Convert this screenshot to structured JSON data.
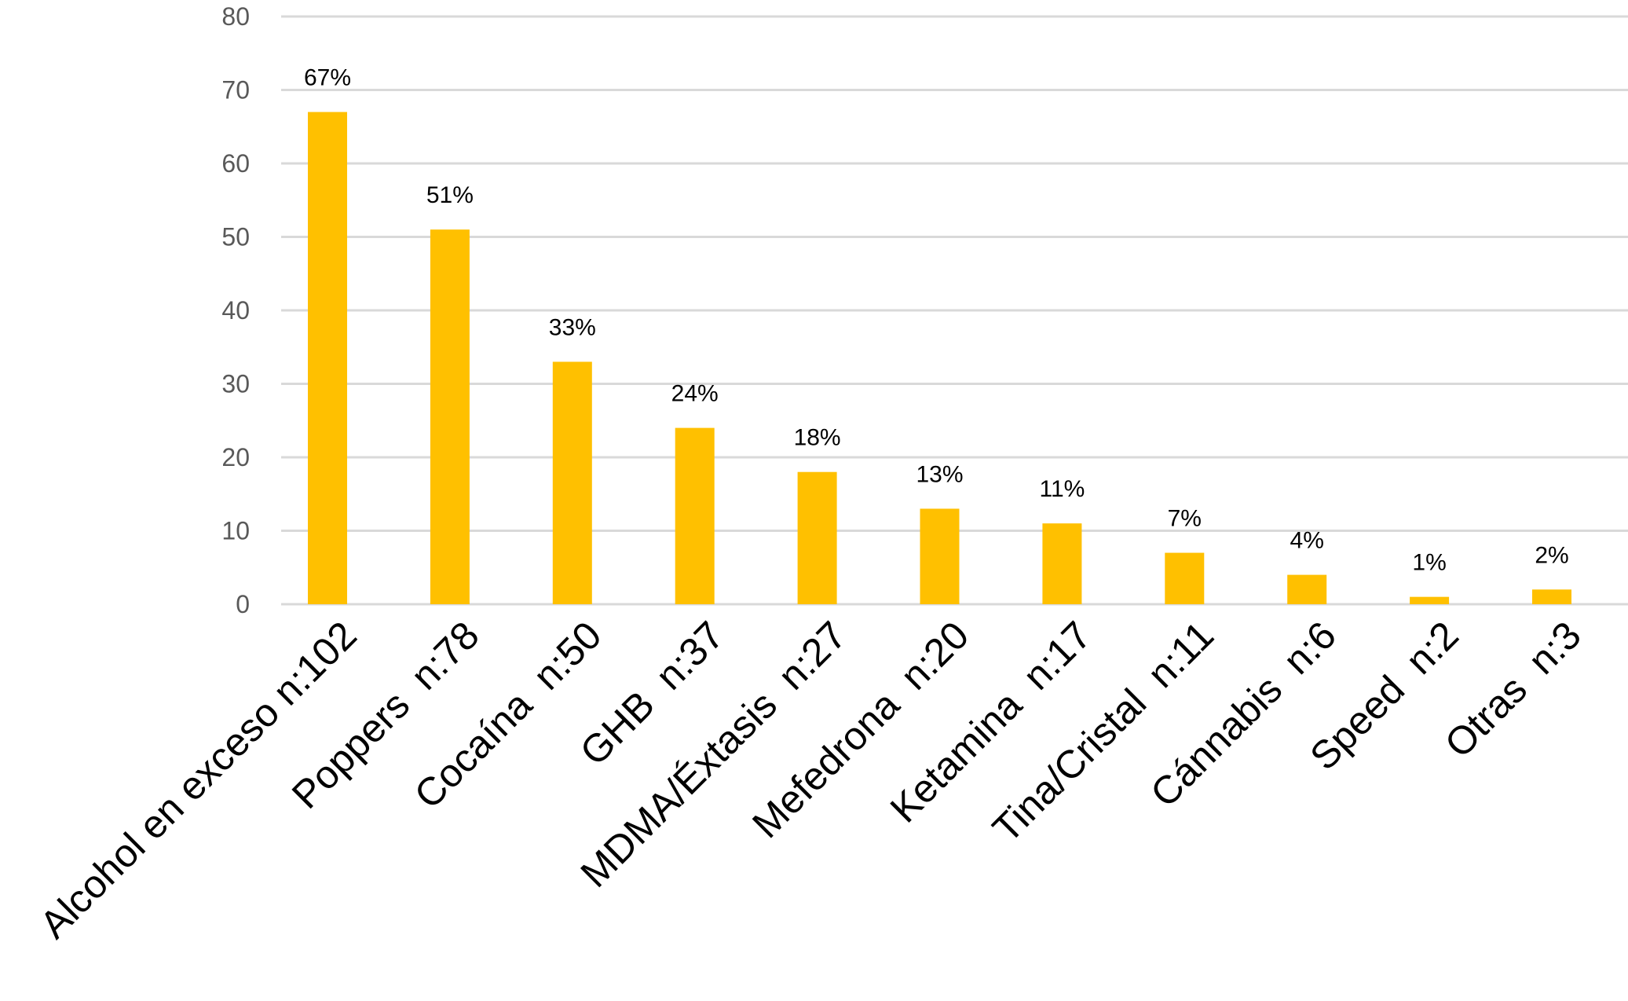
{
  "chart_data": {
    "type": "bar",
    "title": "",
    "xlabel": "",
    "ylabel": "",
    "ylim": [
      0,
      80
    ],
    "yticks": [
      0,
      10,
      20,
      30,
      40,
      50,
      60,
      70,
      80
    ],
    "grid": true,
    "legend": "none",
    "bar_color": "#FFC000",
    "gridline_color": "#D9D9D9",
    "tick_label_color": "#595959",
    "data_label_color": "#000000",
    "categories": [
      "Alcohol en exceso n:102",
      "Poppers  n:78",
      "Cocaína  n:50",
      "GHB  n:37",
      "MDMA/Éxtasis  n:27",
      "Mefedrona  n:20",
      "Ketamina  n:17",
      "Tina/Cristal  n:11",
      "Cánnabis  n:6",
      "Speed  n:2",
      "Otras  n:3"
    ],
    "values": [
      67,
      51,
      33,
      24,
      18,
      13,
      11,
      7,
      4,
      1,
      2
    ],
    "data_labels": [
      "67%",
      "51%",
      "33%",
      "24%",
      "18%",
      "13%",
      "11%",
      "7%",
      "4%",
      "1%",
      "2%"
    ]
  }
}
